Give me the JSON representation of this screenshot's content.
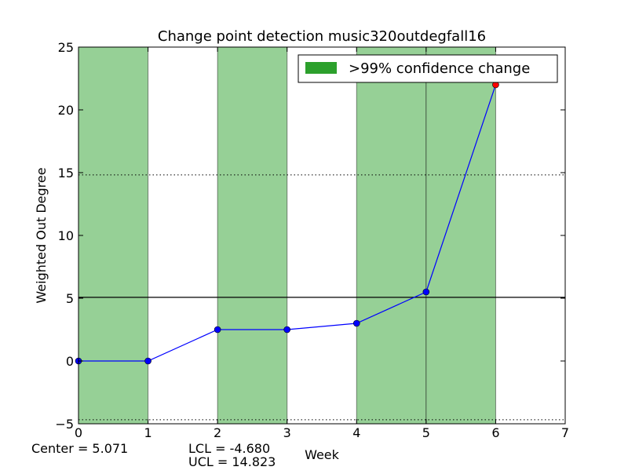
{
  "chart_data": {
    "type": "line",
    "title": "Change point detection music320outdegfall16",
    "xlabel": "Week",
    "ylabel": "Weighted Out Degree",
    "xlim": [
      0,
      7
    ],
    "ylim": [
      -5,
      25
    ],
    "x_ticks": [
      0,
      1,
      2,
      3,
      4,
      5,
      6,
      7
    ],
    "y_ticks": [
      -5,
      0,
      5,
      10,
      15,
      20,
      25
    ],
    "x_tick_labels": [
      "0",
      "1",
      "2",
      "3",
      "4",
      "5",
      "6",
      "7"
    ],
    "y_tick_labels": [
      "−5",
      "0",
      "5",
      "10",
      "15",
      "20",
      "25"
    ],
    "grid": false,
    "legend_position": "top-right",
    "series": [
      {
        "x": [
          0,
          1,
          2,
          3,
          4,
          5,
          6
        ],
        "values": [
          0,
          0,
          2.5,
          2.5,
          3,
          5.5,
          22
        ],
        "line_color": "#0000ff",
        "marker_colors": [
          "#0000ff",
          "#0000ff",
          "#0000ff",
          "#0000ff",
          "#0000ff",
          "#0000ff",
          "#ff0000"
        ]
      }
    ],
    "change_regions": [
      {
        "x_start": 0,
        "x_end": 1
      },
      {
        "x_start": 2,
        "x_end": 3
      },
      {
        "x_start": 4,
        "x_end": 5
      },
      {
        "x_start": 5,
        "x_end": 6
      }
    ],
    "region_color": "#96d096",
    "legend_patch_color": "#2ca02c",
    "legend_label": ">99% confidence change",
    "center_line": 5.071,
    "ucl_line": 14.823,
    "lcl_line": -4.68,
    "annotations": {
      "center": "Center = 5.071",
      "lcl": "LCL = -4.680",
      "ucl": "UCL = 14.823"
    }
  }
}
